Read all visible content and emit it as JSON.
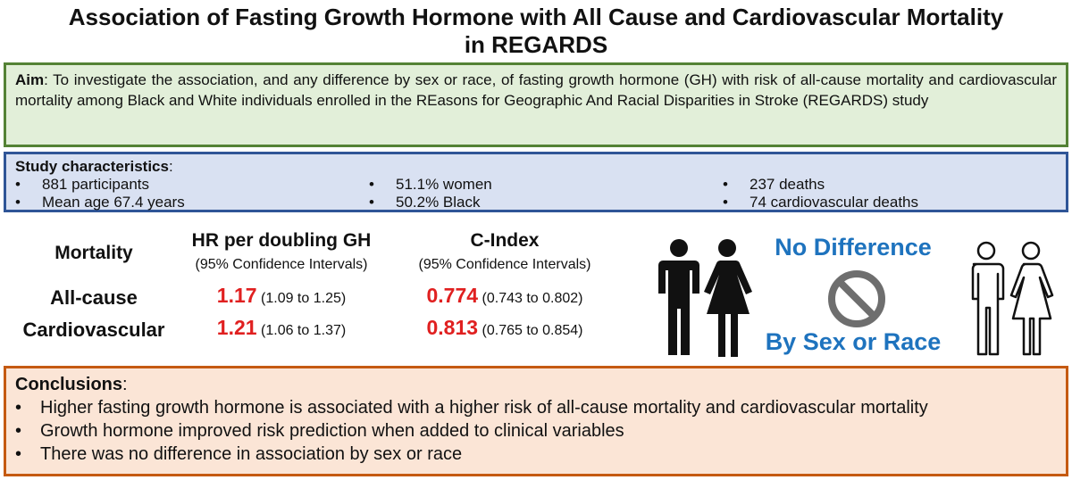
{
  "title": {
    "line1": "Association of Fasting Growth Hormone with All Cause and Cardiovascular Mortality",
    "line2": "in REGARDS"
  },
  "aim": {
    "label": "Aim",
    "text": ": To investigate the association, and any difference by sex or race, of fasting growth hormone (GH) with risk of all-cause mortality and cardiovascular mortality among Black and White individuals enrolled in the REasons for Geographic And Racial Disparities in Stroke (REGARDS) study"
  },
  "study": {
    "label": "Study characteristics",
    "items": [
      "881 participants",
      "51.1% women",
      "237 deaths",
      "Mean age 67.4 years",
      "50.2% Black",
      "74 cardiovascular deaths"
    ]
  },
  "results": {
    "col_mortality": "Mortality",
    "col_hr": "HR per doubling GH",
    "col_hr_sub": "(95% Confidence Intervals)",
    "col_c": "C-Index",
    "col_c_sub": "(95% Confidence Intervals)",
    "rows": [
      {
        "label": "All-cause",
        "hr": "1.17",
        "hr_ci": "(1.09 to 1.25)",
        "c": "0.774",
        "c_ci": "(0.743 to 0.802)"
      },
      {
        "label": "Cardiovascular",
        "hr": "1.21",
        "hr_ci": "(1.06 to 1.37)",
        "c": "0.813",
        "c_ci": "(0.765 to 0.854)"
      }
    ]
  },
  "no_difference": {
    "line1": "No Difference",
    "line2": "By Sex or Race"
  },
  "conclusions": {
    "label": "Conclusions",
    "items": [
      "Higher fasting growth hormone is associated with a higher risk of all-cause mortality and cardiovascular mortality",
      "Growth hormone improved risk prediction when added to clinical variables",
      "There was no difference in association by sex or race"
    ]
  },
  "colors": {
    "aim_bg": "#e2efd9",
    "aim_border": "#548235",
    "study_bg": "#d9e1f2",
    "study_border": "#2f5597",
    "concl_bg": "#fbe5d6",
    "concl_border": "#c55a11",
    "highlight_red": "#e02020",
    "accent_blue": "#1e73be"
  }
}
